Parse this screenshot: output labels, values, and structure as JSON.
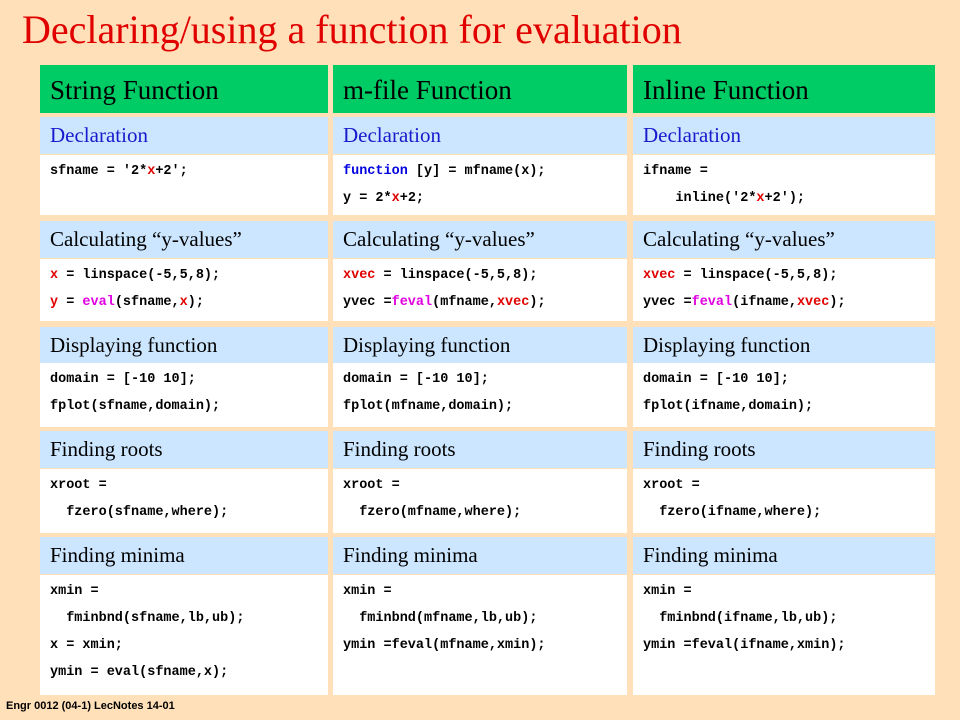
{
  "title": "Declaring/using a function for evaluation",
  "footer": "Engr 0012 (04-1) LecNotes 14-01",
  "columns": [
    {
      "header": "String Function",
      "sections": [
        {
          "title": "Declaration",
          "code": [
            [
              "sfname = '2*",
              {
                "text": "x",
                "color": "#e00000"
              },
              "+2';"
            ]
          ]
        },
        {
          "title": "Calculating “y-values”",
          "code": [
            [
              {
                "text": "x",
                "color": "#e00000"
              },
              " = linspace(-5,5,8);"
            ],
            [
              {
                "text": "y",
                "color": "#e00000"
              },
              " = ",
              {
                "text": "eval",
                "color": "#e000e0"
              },
              "(sfname,",
              {
                "text": "x",
                "color": "#e00000"
              },
              ");"
            ]
          ]
        },
        {
          "title": "Displaying function",
          "code": [
            [
              "domain = [-10 10];"
            ],
            [
              "fplot(sfname,domain);"
            ]
          ]
        },
        {
          "title": "Finding roots",
          "code": [
            [
              "xroot ="
            ],
            [
              "  fzero(sfname,where);"
            ]
          ]
        },
        {
          "title": "Finding minima",
          "code": [
            [
              "xmin ="
            ],
            [
              "  fminbnd(sfname,lb,ub);"
            ],
            [
              "x = xmin;"
            ],
            [
              "ymin = eval(sfname,x);"
            ]
          ]
        }
      ]
    },
    {
      "header": "m-file Function",
      "sections": [
        {
          "title": "Declaration",
          "code": [
            [
              {
                "text": "function",
                "color": "#0000e0"
              },
              " [y] = mfname(x);"
            ],
            [
              "y = 2*",
              {
                "text": "x",
                "color": "#e00000"
              },
              "+2;"
            ]
          ]
        },
        {
          "title": "Calculating “y-values”",
          "code": [
            [
              {
                "text": "xvec",
                "color": "#e00000"
              },
              " = linspace(-5,5,8);"
            ],
            [
              "yvec =",
              {
                "text": "feval",
                "color": "#e000e0"
              },
              "(mfname,",
              {
                "text": "xvec",
                "color": "#e00000"
              },
              ");"
            ]
          ]
        },
        {
          "title": "Displaying function",
          "code": [
            [
              "domain = [-10 10];"
            ],
            [
              "fplot(mfname,domain);"
            ]
          ]
        },
        {
          "title": "Finding roots",
          "code": [
            [
              "xroot ="
            ],
            [
              "  fzero(mfname,where);"
            ]
          ]
        },
        {
          "title": "Finding minima",
          "code": [
            [
              "xmin ="
            ],
            [
              "  fminbnd(mfname,lb,ub);"
            ],
            [
              "ymin =feval(mfname,xmin);"
            ]
          ]
        }
      ]
    },
    {
      "header": "Inline Function",
      "sections": [
        {
          "title": "Declaration",
          "code": [
            [
              "ifname ="
            ],
            [
              "    inline('2*",
              {
                "text": "x",
                "color": "#e00000"
              },
              "+2');"
            ]
          ]
        },
        {
          "title": "Calculating “y-values”",
          "code": [
            [
              {
                "text": "xvec",
                "color": "#e00000"
              },
              " = linspace(-5,5,8);"
            ],
            [
              "yvec =",
              {
                "text": "feval",
                "color": "#e000e0"
              },
              "(ifname,",
              {
                "text": "xvec",
                "color": "#e00000"
              },
              ");"
            ]
          ]
        },
        {
          "title": "Displaying function",
          "code": [
            [
              "domain = [-10 10];"
            ],
            [
              "fplot(ifname,domain);"
            ]
          ]
        },
        {
          "title": "Finding roots",
          "code": [
            [
              "xroot ="
            ],
            [
              "  fzero(ifname,where);"
            ]
          ]
        },
        {
          "title": "Finding minima",
          "code": [
            [
              "xmin ="
            ],
            [
              "  fminbnd(ifname,lb,ub);"
            ],
            [
              "ymin =feval(ifname,xmin);"
            ]
          ]
        }
      ]
    }
  ]
}
